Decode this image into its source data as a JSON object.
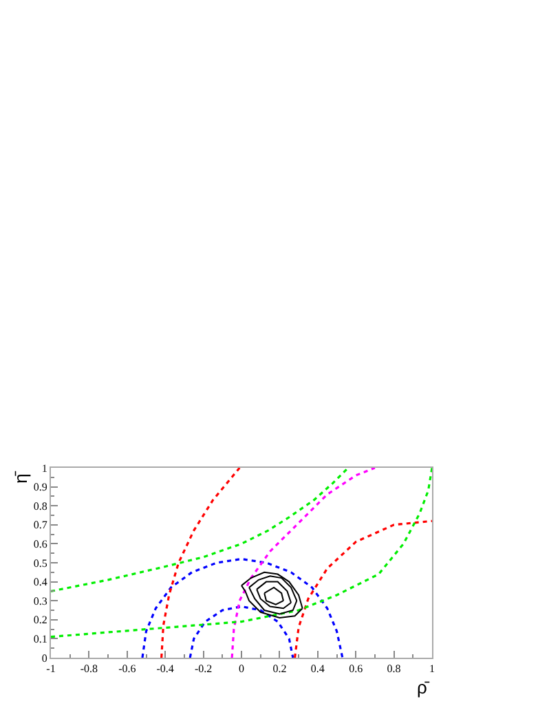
{
  "chart_data": {
    "type": "line",
    "xlabel": "ρ̄",
    "ylabel": "η̄",
    "xlim": [
      -1,
      1
    ],
    "ylim": [
      0,
      1
    ],
    "xticks": [
      -1,
      -0.8,
      -0.6,
      -0.4,
      -0.2,
      0,
      0.2,
      0.4,
      0.6,
      0.8,
      1
    ],
    "yticks": [
      0,
      0.1,
      0.2,
      0.3,
      0.4,
      0.5,
      0.6,
      0.7,
      0.8,
      0.9,
      1
    ],
    "grid": false,
    "marker": "none",
    "series": [
      {
        "color": "#0000ff",
        "line_style": "dotted",
        "x": [
          -0.52,
          -0.5,
          -0.45,
          -0.37,
          -0.26,
          -0.13,
          0,
          0.13,
          0.26,
          0.37,
          0.45,
          0.5,
          0.53
        ],
        "values": [
          0,
          0.14,
          0.26,
          0.37,
          0.45,
          0.5,
          0.52,
          0.5,
          0.45,
          0.37,
          0.26,
          0.14,
          0
        ]
      },
      {
        "color": "#0000ff",
        "line_style": "dotted",
        "x": [
          -0.27,
          -0.25,
          -0.19,
          -0.1,
          0,
          0.1,
          0.19,
          0.25,
          0.27
        ],
        "values": [
          0,
          0.1,
          0.19,
          0.25,
          0.27,
          0.25,
          0.19,
          0.1,
          0
        ]
      },
      {
        "color": "#ff0000",
        "line_style": "dotted",
        "x": [
          -0.42,
          -0.41,
          -0.38,
          -0.33,
          -0.25,
          -0.15,
          -0.01
        ],
        "values": [
          0,
          0.17,
          0.33,
          0.5,
          0.67,
          0.83,
          1
        ]
      },
      {
        "color": "#ff0000",
        "line_style": "dotted",
        "x": [
          0.28,
          0.3,
          0.35,
          0.45,
          0.6,
          0.8,
          1
        ],
        "values": [
          0,
          0.16,
          0.31,
          0.47,
          0.61,
          0.7,
          0.72
        ]
      },
      {
        "color": "#ff00ff",
        "line_style": "dotted",
        "x": [
          -0.05,
          -0.04,
          -0.01,
          0.05,
          0.15,
          0.3,
          0.45,
          0.6,
          0.7
        ],
        "values": [
          0,
          0.15,
          0.3,
          0.42,
          0.56,
          0.71,
          0.86,
          0.96,
          1
        ]
      },
      {
        "color": "#00ee00",
        "line_style": "dotted",
        "x": [
          -1,
          -0.7,
          -0.4,
          -0.2,
          0,
          0.14,
          0.25,
          0.38,
          0.48,
          0.56
        ],
        "values": [
          0.35,
          0.41,
          0.48,
          0.53,
          0.6,
          0.67,
          0.74,
          0.83,
          0.92,
          1
        ]
      },
      {
        "color": "#00ee00",
        "line_style": "dotted",
        "x": [
          -1,
          -0.5,
          0,
          0.3,
          0.5,
          0.72,
          0.85,
          0.935,
          0.98,
          1
        ],
        "values": [
          0.11,
          0.15,
          0.19,
          0.25,
          0.33,
          0.44,
          0.6,
          0.76,
          0.88,
          1
        ]
      },
      {
        "color": "#000000",
        "line_style": "solid",
        "x": [
          0,
          0.05,
          0.12,
          0.19,
          0.25,
          0.3,
          0.32
        ],
        "values": [
          0.38,
          0.42,
          0.45,
          0.44,
          0.4,
          0.33,
          0.26
        ]
      },
      {
        "color": "#000000",
        "line_style": "solid",
        "x": [
          0,
          0.02,
          0.04,
          0.1,
          0.2,
          0.28,
          0.32
        ],
        "values": [
          0.38,
          0.35,
          0.3,
          0.24,
          0.21,
          0.22,
          0.26
        ]
      },
      {
        "color": "#000000",
        "line_style": "solid",
        "x": [
          0.04,
          0.09,
          0.15,
          0.21,
          0.26,
          0.29
        ],
        "values": [
          0.37,
          0.41,
          0.43,
          0.42,
          0.37,
          0.3
        ]
      },
      {
        "color": "#000000",
        "line_style": "solid",
        "x": [
          0.04,
          0.07,
          0.12,
          0.2,
          0.27,
          0.29
        ],
        "values": [
          0.37,
          0.31,
          0.25,
          0.23,
          0.25,
          0.3
        ]
      },
      {
        "color": "#000000",
        "line_style": "solid",
        "x": [
          0.08,
          0.13,
          0.19,
          0.24,
          0.26
        ],
        "values": [
          0.36,
          0.4,
          0.4,
          0.35,
          0.29
        ]
      },
      {
        "color": "#000000",
        "line_style": "solid",
        "x": [
          0.08,
          0.1,
          0.15,
          0.22,
          0.26
        ],
        "values": [
          0.36,
          0.31,
          0.27,
          0.26,
          0.29
        ]
      },
      {
        "color": "#000000",
        "line_style": "solid",
        "x": [
          0.12,
          0.17,
          0.21,
          0.22
        ],
        "values": [
          0.34,
          0.37,
          0.34,
          0.3
        ]
      },
      {
        "color": "#000000",
        "line_style": "solid",
        "x": [
          0.12,
          0.13,
          0.18,
          0.22
        ],
        "values": [
          0.34,
          0.3,
          0.28,
          0.3
        ]
      }
    ]
  }
}
